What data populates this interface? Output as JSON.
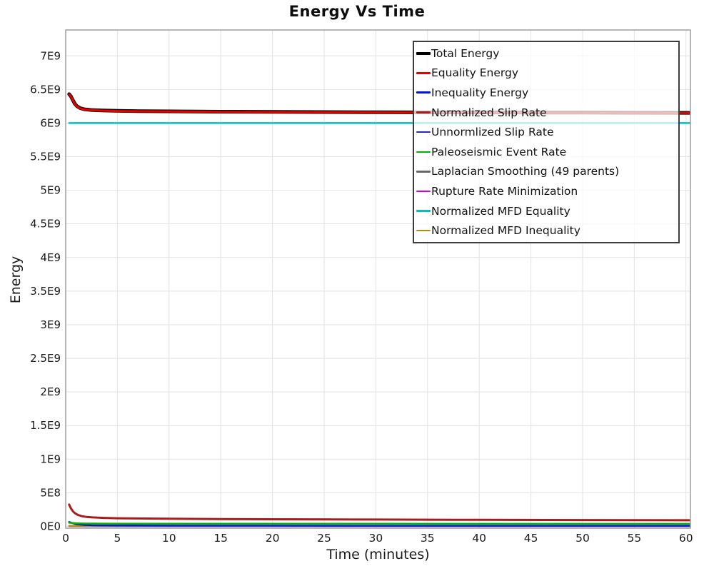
{
  "chart": {
    "title": "Energy Vs Time",
    "xlabel": "Time (minutes)",
    "ylabel": "Energy"
  },
  "legend": {
    "items": [
      {
        "label": "Total Energy",
        "color": "#000000",
        "thickness": 4.5
      },
      {
        "label": "Equality Energy",
        "color": "#e60000",
        "thickness": 3
      },
      {
        "label": "Inequality Energy",
        "color": "#0014dc",
        "thickness": 3
      },
      {
        "label": "Normalized Slip Rate",
        "color": "#aa1c1c",
        "thickness": 3
      },
      {
        "label": "Unnormlized Slip Rate",
        "color": "#2c2ca8",
        "thickness": 2.5
      },
      {
        "label": "Paleoseismic Event Rate",
        "color": "#00b400",
        "thickness": 2.5
      },
      {
        "label": "Laplacian Smoothing (49 parents)",
        "color": "#676767",
        "thickness": 2.5
      },
      {
        "label": "Rupture Rate Minimization",
        "color": "#d400d4",
        "thickness": 2.5
      },
      {
        "label": "Normalized MFD Equality",
        "color": "#00bfbf",
        "thickness": 2.5
      },
      {
        "label": "Normalized MFD Inequality",
        "color": "#b08c10",
        "thickness": 2.5
      }
    ]
  },
  "chart_data": {
    "type": "line",
    "title": "Energy Vs Time",
    "xlabel": "Time (minutes)",
    "ylabel": "Energy",
    "xlim": [
      0,
      60.43
    ],
    "ylim": [
      -27000000,
      7385000000
    ],
    "grid": true,
    "legend_position": "top-right-inside",
    "x_ticks": {
      "values": [
        0,
        5,
        10,
        15,
        20,
        25,
        30,
        35,
        40,
        45,
        50,
        55,
        60
      ],
      "labels": [
        "0",
        "5",
        "10",
        "15",
        "20",
        "25",
        "30",
        "35",
        "40",
        "45",
        "50",
        "55",
        "60"
      ]
    },
    "y_ticks": {
      "values": [
        0,
        500000000.0,
        1000000000.0,
        1500000000.0,
        2000000000.0,
        2500000000.0,
        3000000000.0,
        3500000000.0,
        4000000000.0,
        4500000000.0,
        5000000000.0,
        5500000000.0,
        6000000000.0,
        6500000000.0,
        7000000000.0
      ],
      "labels": [
        "0E0",
        "5E8",
        "1E9",
        "1.5E9",
        "2E9",
        "2.5E9",
        "3E9",
        "3.5E9",
        "4E9",
        "4.5E9",
        "5E9",
        "5.5E9",
        "6E9",
        "6.5E9",
        "7E9"
      ]
    },
    "draw_order": [
      7,
      6,
      4,
      9,
      2,
      5,
      3,
      8,
      0,
      1
    ],
    "series": [
      {
        "name": "Total Energy",
        "color": "#000000",
        "width": 5,
        "points": [
          [
            0.33,
            6430000000.0
          ],
          [
            0.5,
            6400000000.0
          ],
          [
            0.7,
            6340000000.0
          ],
          [
            0.9,
            6285000000.0
          ],
          [
            1.1,
            6250000000.0
          ],
          [
            1.4,
            6222000000.0
          ],
          [
            1.8,
            6205000000.0
          ],
          [
            2.5,
            6195000000.0
          ],
          [
            3.5,
            6188000000.0
          ],
          [
            5,
            6182000000.0
          ],
          [
            7,
            6178000000.0
          ],
          [
            10,
            6174000000.0
          ],
          [
            15,
            6169000000.0
          ],
          [
            20,
            6166000000.0
          ],
          [
            30,
            6161000000.0
          ],
          [
            40,
            6158000000.0
          ],
          [
            50,
            6155000000.0
          ],
          [
            60.43,
            6152000000.0
          ]
        ]
      },
      {
        "name": "Equality Energy",
        "color": "#e60000",
        "width": 3,
        "points": [
          [
            0.33,
            6427000000.0
          ],
          [
            0.5,
            6397000000.0
          ],
          [
            0.7,
            6337000000.0
          ],
          [
            0.9,
            6282000000.0
          ],
          [
            1.1,
            6247000000.0
          ],
          [
            1.4,
            6219000000.0
          ],
          [
            1.8,
            6202000000.0
          ],
          [
            2.5,
            6192000000.0
          ],
          [
            3.5,
            6185000000.0
          ],
          [
            5,
            6179000000.0
          ],
          [
            7,
            6175000000.0
          ],
          [
            10,
            6171000000.0
          ],
          [
            15,
            6166000000.0
          ],
          [
            20,
            6163000000.0
          ],
          [
            30,
            6158000000.0
          ],
          [
            40,
            6155000000.0
          ],
          [
            50,
            6152000000.0
          ],
          [
            60.43,
            6149000000.0
          ]
        ]
      },
      {
        "name": "Inequality Energy",
        "color": "#0014dc",
        "width": 2.5,
        "points": [
          [
            0.33,
            65000000.0
          ],
          [
            0.6,
            50000000.0
          ],
          [
            0.9,
            38000000.0
          ],
          [
            1.3,
            28000000.0
          ],
          [
            1.8,
            21000000.0
          ],
          [
            2.5,
            17000000.0
          ],
          [
            3.5,
            14000000.0
          ],
          [
            5,
            12000000.0
          ],
          [
            8,
            11000000.0
          ],
          [
            15,
            10000000.0
          ],
          [
            30,
            9500000.0
          ],
          [
            60.43,
            9000000.0
          ]
        ]
      },
      {
        "name": "Normalized Slip Rate",
        "color": "#aa1c1c",
        "width": 3,
        "points": [
          [
            0.33,
            325000000.0
          ],
          [
            0.5,
            270000000.0
          ],
          [
            0.7,
            225000000.0
          ],
          [
            0.9,
            195000000.0
          ],
          [
            1.2,
            168000000.0
          ],
          [
            1.6,
            150000000.0
          ],
          [
            2,
            141000000.0
          ],
          [
            2.6,
            133000000.0
          ],
          [
            3.5,
            127000000.0
          ],
          [
            5,
            121000000.0
          ],
          [
            7,
            117000000.0
          ],
          [
            10,
            113000000.0
          ],
          [
            15,
            109000000.0
          ],
          [
            20,
            106000000.0
          ],
          [
            30,
            101000000.0
          ],
          [
            40,
            97000000.0
          ],
          [
            50,
            94000000.0
          ],
          [
            60.43,
            91000000.0
          ]
        ]
      },
      {
        "name": "Unnormlized Slip Rate",
        "color": "#2c2ca8",
        "width": 2,
        "points": [
          [
            0.33,
            6000000.0
          ],
          [
            2,
            4000000.0
          ],
          [
            10,
            3500000.0
          ],
          [
            60.43,
            3500000.0
          ]
        ]
      },
      {
        "name": "Paleoseismic Event Rate",
        "color": "#00b400",
        "width": 2.5,
        "points": [
          [
            0.33,
            54000000.0
          ],
          [
            0.7,
            49000000.0
          ],
          [
            1.2,
            45000000.0
          ],
          [
            2,
            42500000.0
          ],
          [
            3.5,
            41000000.0
          ],
          [
            6,
            40000000.0
          ],
          [
            15,
            39000000.0
          ],
          [
            30,
            38500000.0
          ],
          [
            60.43,
            38000000.0
          ]
        ]
      },
      {
        "name": "Laplacian Smoothing (49 parents)",
        "color": "#676767",
        "width": 2,
        "points": [
          [
            0.33,
            3000000.0
          ],
          [
            60.43,
            2500000.0
          ]
        ]
      },
      {
        "name": "Rupture Rate Minimization",
        "color": "#d400d4",
        "width": 2,
        "points": [
          [
            0.33,
            2000000.0
          ],
          [
            60.43,
            1800000.0
          ]
        ]
      },
      {
        "name": "Normalized MFD Equality",
        "color": "#00bfbf",
        "width": 2.5,
        "points": [
          [
            0.33,
            6000000000.0
          ],
          [
            60.43,
            6000000000.0
          ]
        ]
      },
      {
        "name": "Normalized MFD Inequality",
        "color": "#b08c10",
        "width": 2.5,
        "points": [
          [
            0.33,
            7500000.0
          ],
          [
            60.43,
            7000000.0
          ]
        ]
      }
    ],
    "colors": {
      "grid": "#e2e2e2",
      "plot_border": "#9e9e9e",
      "tick_text": "#1a1a1a",
      "legend_border": "#3d3d3d"
    }
  }
}
